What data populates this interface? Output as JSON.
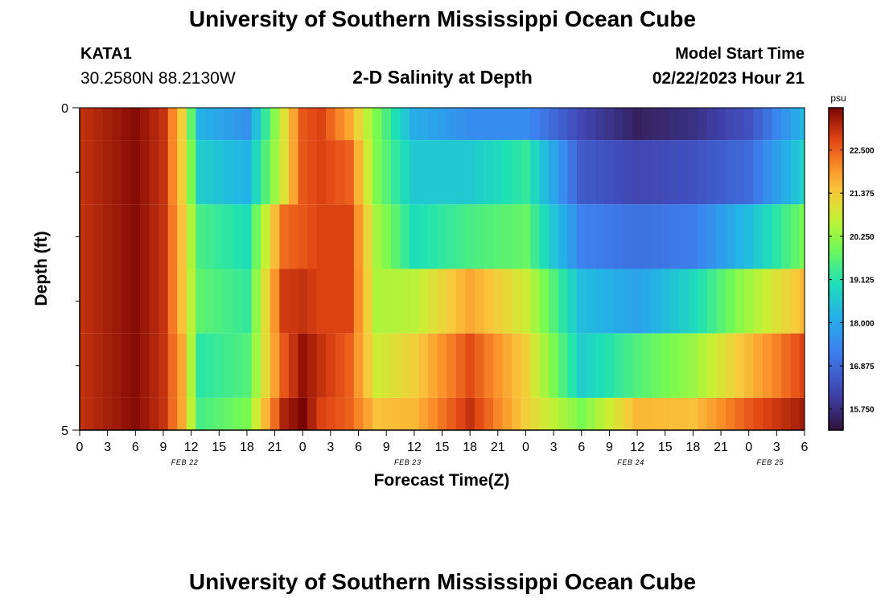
{
  "header": {
    "title": "University of Southern Mississippi Ocean Cube",
    "station_id": "KATA1",
    "station_coords": "30.2580N  88.2130W",
    "chart_title": "2-D Salinity at Depth",
    "model_start_label": "Model Start Time",
    "model_start_value": "02/22/2023 Hour 21"
  },
  "footer": {
    "title": "University of Southern Mississippi Ocean Cube"
  },
  "chart_data": {
    "type": "heatmap",
    "title": "2-D Salinity at Depth",
    "xlabel": "Forecast Time(Z)",
    "ylabel": "Depth (ft)",
    "x_tick_labels": [
      "0",
      "3",
      "6",
      "9",
      "12",
      "15",
      "18",
      "21",
      "0",
      "3",
      "6",
      "9",
      "12",
      "15",
      "18",
      "21",
      "0",
      "3",
      "6",
      "9",
      "12",
      "15",
      "18",
      "21",
      "0",
      "3",
      "6"
    ],
    "x_date_labels": [
      {
        "label": "FEB 22",
        "tick_index": 4
      },
      {
        "label": "FEB 23",
        "tick_index": 12
      },
      {
        "label": "FEB 24",
        "tick_index": 20
      },
      {
        "label": "FEB 25",
        "tick_index": 25
      }
    ],
    "y_tick_labels": [
      "0",
      "5"
    ],
    "ylim": [
      0,
      5
    ],
    "colorbar": {
      "unit": "psu",
      "ticks": [
        "22.500",
        "21.375",
        "20.250",
        "19.125",
        "18.000",
        "16.875",
        "15.750"
      ],
      "range": [
        15.2,
        23.6
      ]
    },
    "time_start_hour": 0,
    "time_step_hours": 1,
    "n_times": 79,
    "depth_layers": [
      "0-0.5 ft",
      "0.5-1.5 ft",
      "1.5-2.5 ft",
      "2.5-3.5 ft",
      "3.5-4.5 ft",
      "4.5-5 ft"
    ],
    "anchor_hours": [
      0,
      6,
      9,
      11,
      13,
      18,
      22,
      24,
      26,
      29,
      32,
      36,
      42,
      48,
      54,
      60,
      66,
      72,
      78
    ],
    "layer_anchor_values": [
      [
        23.0,
        23.5,
        23.0,
        21.3,
        18.2,
        17.6,
        21.0,
        22.6,
        22.8,
        21.8,
        20.0,
        18.1,
        17.5,
        17.5,
        16.2,
        15.5,
        15.8,
        16.4,
        18.3
      ],
      [
        23.0,
        23.5,
        23.0,
        21.3,
        18.7,
        18.2,
        21.0,
        22.6,
        22.8,
        22.5,
        20.0,
        18.6,
        18.6,
        19.3,
        16.6,
        16.2,
        16.4,
        16.9,
        18.8
      ],
      [
        23.0,
        23.5,
        23.0,
        21.5,
        19.5,
        19.0,
        22.4,
        22.6,
        22.8,
        22.8,
        20.4,
        19.0,
        19.5,
        19.8,
        17.3,
        17.0,
        17.2,
        18.4,
        20.0
      ],
      [
        23.0,
        23.5,
        23.0,
        21.5,
        19.7,
        19.3,
        22.9,
        23.0,
        22.8,
        22.8,
        20.5,
        20.6,
        21.8,
        20.8,
        18.4,
        17.9,
        18.9,
        20.4,
        21.6
      ],
      [
        23.0,
        23.5,
        23.0,
        21.8,
        19.2,
        19.6,
        22.6,
        23.4,
        23.0,
        22.5,
        20.8,
        21.3,
        22.7,
        21.3,
        18.7,
        19.6,
        20.3,
        21.6,
        22.8
      ],
      [
        23.0,
        23.5,
        23.0,
        21.8,
        19.5,
        20.0,
        23.2,
        23.6,
        22.8,
        22.5,
        21.5,
        21.6,
        23.0,
        21.3,
        20.0,
        21.6,
        21.5,
        22.6,
        23.3
      ]
    ]
  }
}
